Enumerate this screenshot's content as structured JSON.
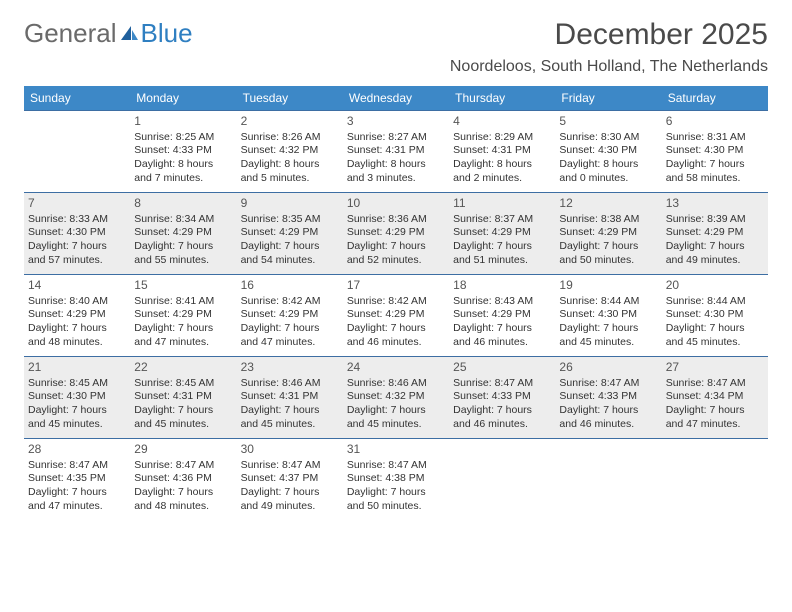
{
  "brand": {
    "part1": "General",
    "part2": "Blue"
  },
  "title": "December 2025",
  "location": "Noordeloos, South Holland, The Netherlands",
  "colors": {
    "header_bg": "#3d88c7",
    "header_text": "#ffffff",
    "rule": "#3d6ea3",
    "shade": "#ededed",
    "text": "#333333",
    "brand_gray": "#6a6a6a",
    "brand_blue": "#2f7fc1"
  },
  "dayNames": [
    "Sunday",
    "Monday",
    "Tuesday",
    "Wednesday",
    "Thursday",
    "Friday",
    "Saturday"
  ],
  "weeks": [
    {
      "shaded": false,
      "days": [
        {
          "num": "",
          "sunrise": "",
          "sunset": "",
          "daylight": ""
        },
        {
          "num": "1",
          "sunrise": "Sunrise: 8:25 AM",
          "sunset": "Sunset: 4:33 PM",
          "daylight": "Daylight: 8 hours and 7 minutes."
        },
        {
          "num": "2",
          "sunrise": "Sunrise: 8:26 AM",
          "sunset": "Sunset: 4:32 PM",
          "daylight": "Daylight: 8 hours and 5 minutes."
        },
        {
          "num": "3",
          "sunrise": "Sunrise: 8:27 AM",
          "sunset": "Sunset: 4:31 PM",
          "daylight": "Daylight: 8 hours and 3 minutes."
        },
        {
          "num": "4",
          "sunrise": "Sunrise: 8:29 AM",
          "sunset": "Sunset: 4:31 PM",
          "daylight": "Daylight: 8 hours and 2 minutes."
        },
        {
          "num": "5",
          "sunrise": "Sunrise: 8:30 AM",
          "sunset": "Sunset: 4:30 PM",
          "daylight": "Daylight: 8 hours and 0 minutes."
        },
        {
          "num": "6",
          "sunrise": "Sunrise: 8:31 AM",
          "sunset": "Sunset: 4:30 PM",
          "daylight": "Daylight: 7 hours and 58 minutes."
        }
      ]
    },
    {
      "shaded": true,
      "days": [
        {
          "num": "7",
          "sunrise": "Sunrise: 8:33 AM",
          "sunset": "Sunset: 4:30 PM",
          "daylight": "Daylight: 7 hours and 57 minutes."
        },
        {
          "num": "8",
          "sunrise": "Sunrise: 8:34 AM",
          "sunset": "Sunset: 4:29 PM",
          "daylight": "Daylight: 7 hours and 55 minutes."
        },
        {
          "num": "9",
          "sunrise": "Sunrise: 8:35 AM",
          "sunset": "Sunset: 4:29 PM",
          "daylight": "Daylight: 7 hours and 54 minutes."
        },
        {
          "num": "10",
          "sunrise": "Sunrise: 8:36 AM",
          "sunset": "Sunset: 4:29 PM",
          "daylight": "Daylight: 7 hours and 52 minutes."
        },
        {
          "num": "11",
          "sunrise": "Sunrise: 8:37 AM",
          "sunset": "Sunset: 4:29 PM",
          "daylight": "Daylight: 7 hours and 51 minutes."
        },
        {
          "num": "12",
          "sunrise": "Sunrise: 8:38 AM",
          "sunset": "Sunset: 4:29 PM",
          "daylight": "Daylight: 7 hours and 50 minutes."
        },
        {
          "num": "13",
          "sunrise": "Sunrise: 8:39 AM",
          "sunset": "Sunset: 4:29 PM",
          "daylight": "Daylight: 7 hours and 49 minutes."
        }
      ]
    },
    {
      "shaded": false,
      "days": [
        {
          "num": "14",
          "sunrise": "Sunrise: 8:40 AM",
          "sunset": "Sunset: 4:29 PM",
          "daylight": "Daylight: 7 hours and 48 minutes."
        },
        {
          "num": "15",
          "sunrise": "Sunrise: 8:41 AM",
          "sunset": "Sunset: 4:29 PM",
          "daylight": "Daylight: 7 hours and 47 minutes."
        },
        {
          "num": "16",
          "sunrise": "Sunrise: 8:42 AM",
          "sunset": "Sunset: 4:29 PM",
          "daylight": "Daylight: 7 hours and 47 minutes."
        },
        {
          "num": "17",
          "sunrise": "Sunrise: 8:42 AM",
          "sunset": "Sunset: 4:29 PM",
          "daylight": "Daylight: 7 hours and 46 minutes."
        },
        {
          "num": "18",
          "sunrise": "Sunrise: 8:43 AM",
          "sunset": "Sunset: 4:29 PM",
          "daylight": "Daylight: 7 hours and 46 minutes."
        },
        {
          "num": "19",
          "sunrise": "Sunrise: 8:44 AM",
          "sunset": "Sunset: 4:30 PM",
          "daylight": "Daylight: 7 hours and 45 minutes."
        },
        {
          "num": "20",
          "sunrise": "Sunrise: 8:44 AM",
          "sunset": "Sunset: 4:30 PM",
          "daylight": "Daylight: 7 hours and 45 minutes."
        }
      ]
    },
    {
      "shaded": true,
      "days": [
        {
          "num": "21",
          "sunrise": "Sunrise: 8:45 AM",
          "sunset": "Sunset: 4:30 PM",
          "daylight": "Daylight: 7 hours and 45 minutes."
        },
        {
          "num": "22",
          "sunrise": "Sunrise: 8:45 AM",
          "sunset": "Sunset: 4:31 PM",
          "daylight": "Daylight: 7 hours and 45 minutes."
        },
        {
          "num": "23",
          "sunrise": "Sunrise: 8:46 AM",
          "sunset": "Sunset: 4:31 PM",
          "daylight": "Daylight: 7 hours and 45 minutes."
        },
        {
          "num": "24",
          "sunrise": "Sunrise: 8:46 AM",
          "sunset": "Sunset: 4:32 PM",
          "daylight": "Daylight: 7 hours and 45 minutes."
        },
        {
          "num": "25",
          "sunrise": "Sunrise: 8:47 AM",
          "sunset": "Sunset: 4:33 PM",
          "daylight": "Daylight: 7 hours and 46 minutes."
        },
        {
          "num": "26",
          "sunrise": "Sunrise: 8:47 AM",
          "sunset": "Sunset: 4:33 PM",
          "daylight": "Daylight: 7 hours and 46 minutes."
        },
        {
          "num": "27",
          "sunrise": "Sunrise: 8:47 AM",
          "sunset": "Sunset: 4:34 PM",
          "daylight": "Daylight: 7 hours and 47 minutes."
        }
      ]
    },
    {
      "shaded": false,
      "days": [
        {
          "num": "28",
          "sunrise": "Sunrise: 8:47 AM",
          "sunset": "Sunset: 4:35 PM",
          "daylight": "Daylight: 7 hours and 47 minutes."
        },
        {
          "num": "29",
          "sunrise": "Sunrise: 8:47 AM",
          "sunset": "Sunset: 4:36 PM",
          "daylight": "Daylight: 7 hours and 48 minutes."
        },
        {
          "num": "30",
          "sunrise": "Sunrise: 8:47 AM",
          "sunset": "Sunset: 4:37 PM",
          "daylight": "Daylight: 7 hours and 49 minutes."
        },
        {
          "num": "31",
          "sunrise": "Sunrise: 8:47 AM",
          "sunset": "Sunset: 4:38 PM",
          "daylight": "Daylight: 7 hours and 50 minutes."
        },
        {
          "num": "",
          "sunrise": "",
          "sunset": "",
          "daylight": ""
        },
        {
          "num": "",
          "sunrise": "",
          "sunset": "",
          "daylight": ""
        },
        {
          "num": "",
          "sunrise": "",
          "sunset": "",
          "daylight": ""
        }
      ]
    }
  ]
}
